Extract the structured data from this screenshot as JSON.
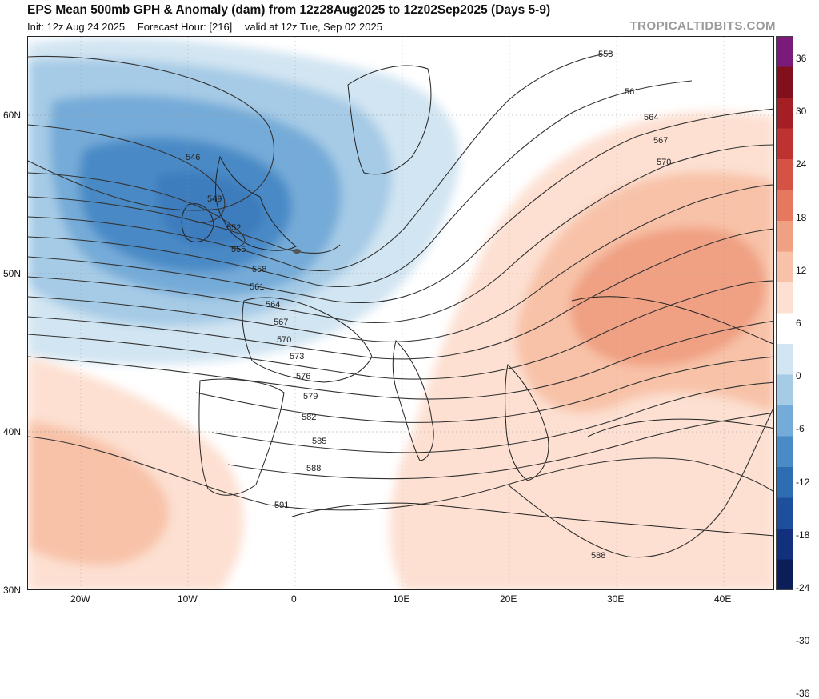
{
  "header": {
    "title": "EPS Mean 500mb GPH & Anomaly (dam) from 12z28Aug2025 to 12z02Sep2025 (Days 5-9)",
    "init": "Init: 12z Aug 24 2025",
    "forecast_hour": "Forecast Hour: [216]",
    "valid": "valid at 12z Tue, Sep 02 2025",
    "brand": "TROPICALTIDBITS.COM"
  },
  "axes": {
    "lat_labels": [
      "60N",
      "50N",
      "40N",
      "30N"
    ],
    "lon_labels": [
      "20W",
      "10W",
      "0",
      "10E",
      "20E",
      "30E",
      "40E"
    ]
  },
  "contours": {
    "labels": [
      "546",
      "549",
      "552",
      "555",
      "558",
      "561",
      "564",
      "567",
      "570",
      "573",
      "576",
      "579",
      "582",
      "585",
      "588",
      "591",
      "558",
      "561",
      "564",
      "567",
      "570",
      "588"
    ]
  },
  "colorbar": {
    "ticks": [
      "36",
      "30",
      "24",
      "18",
      "12",
      "6",
      "0",
      "-6",
      "-12",
      "-18",
      "-24",
      "-30",
      "-36"
    ],
    "colors": [
      "#0b1e5a",
      "#13307e",
      "#1e4f9c",
      "#2f6db3",
      "#4a8ac6",
      "#74abd8",
      "#a6cbe6",
      "#d2e5f2",
      "#ffffff",
      "#fde0d2",
      "#f8c2a8",
      "#f0a083",
      "#e5785f",
      "#d45345",
      "#bf3232",
      "#a31f25",
      "#82101c",
      "#7a1a7a"
    ],
    "accent_low": "#2f6db3",
    "accent_high": "#e5785f"
  }
}
